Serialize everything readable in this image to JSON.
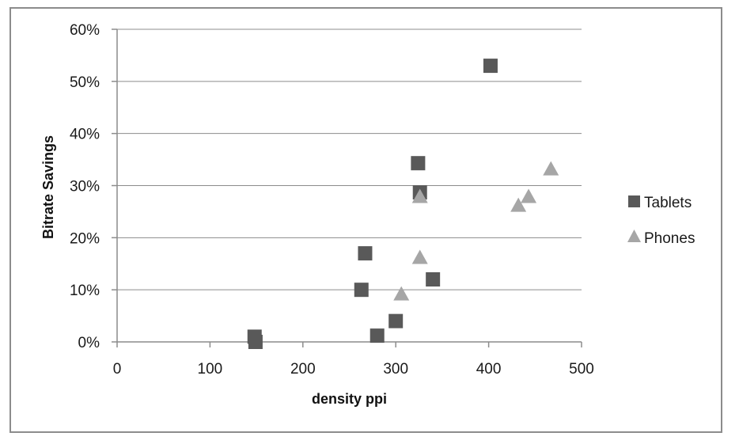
{
  "chart_data": {
    "type": "scatter",
    "xlabel": "density ppi",
    "ylabel": "Bitrate Savings",
    "xlim": [
      0,
      500
    ],
    "ylim": [
      0,
      0.6
    ],
    "x_ticks": [
      0,
      100,
      200,
      300,
      400,
      500
    ],
    "y_ticks": [
      0,
      0.1,
      0.2,
      0.3,
      0.4,
      0.5,
      0.6
    ],
    "x_tick_labels": [
      "0",
      "100",
      "200",
      "300",
      "400",
      "500"
    ],
    "y_tick_labels": [
      "0%",
      "10%",
      "20%",
      "30%",
      "40%",
      "50%",
      "60%"
    ],
    "grid": "horizontal",
    "legend_position": "right",
    "series": [
      {
        "name": "Tablets",
        "marker": "square",
        "color": "#595959",
        "points": [
          {
            "x": 148,
            "y": 0.01
          },
          {
            "x": 149,
            "y": 0.0
          },
          {
            "x": 263,
            "y": 0.1
          },
          {
            "x": 267,
            "y": 0.17
          },
          {
            "x": 280,
            "y": 0.012
          },
          {
            "x": 300,
            "y": 0.04
          },
          {
            "x": 324,
            "y": 0.343
          },
          {
            "x": 326,
            "y": 0.287
          },
          {
            "x": 340,
            "y": 0.12
          },
          {
            "x": 402,
            "y": 0.53
          }
        ]
      },
      {
        "name": "Phones",
        "marker": "triangle",
        "color": "#a6a6a6",
        "points": [
          {
            "x": 306,
            "y": 0.09
          },
          {
            "x": 326,
            "y": 0.16
          },
          {
            "x": 326,
            "y": 0.277
          },
          {
            "x": 432,
            "y": 0.26
          },
          {
            "x": 443,
            "y": 0.277
          },
          {
            "x": 467,
            "y": 0.33
          }
        ]
      }
    ]
  }
}
